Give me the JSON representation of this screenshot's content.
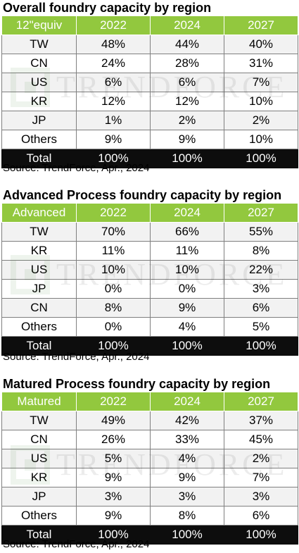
{
  "watermark": "TRENDFORCE",
  "colors": {
    "header_green": "#92c83e",
    "total_black": "#0d0d0d",
    "band_gray": "#f2f2f2"
  },
  "sections": [
    {
      "title": "Overall foundry capacity by region",
      "header": [
        "12\"equiv",
        "2022",
        "2024",
        "2027"
      ],
      "rows": [
        [
          "TW",
          "48%",
          "44%",
          "40%"
        ],
        [
          "CN",
          "24%",
          "28%",
          "31%"
        ],
        [
          "US",
          "6%",
          "6%",
          "7%"
        ],
        [
          "KR",
          "12%",
          "12%",
          "10%"
        ],
        [
          "JP",
          "1%",
          "2%",
          "2%"
        ],
        [
          "Others",
          "9%",
          "9%",
          "10%"
        ]
      ],
      "total": [
        "Total",
        "100%",
        "100%",
        "100%"
      ],
      "source": "Source: TrendForce, Apr., 2024"
    },
    {
      "title": "Advanced Process foundry capacity by region",
      "header": [
        "Advanced",
        "2022",
        "2024",
        "2027"
      ],
      "rows": [
        [
          "TW",
          "70%",
          "66%",
          "55%"
        ],
        [
          "KR",
          "11%",
          "11%",
          "8%"
        ],
        [
          "US",
          "10%",
          "10%",
          "22%"
        ],
        [
          "JP",
          "0%",
          "0%",
          "3%"
        ],
        [
          "CN",
          "8%",
          "9%",
          "6%"
        ],
        [
          "Others",
          "0%",
          "4%",
          "5%"
        ]
      ],
      "total": [
        "Total",
        "100%",
        "100%",
        "100%"
      ],
      "source": "Source: TrendForce, Apr., 2024"
    },
    {
      "title": "Matured Process foundry capacity by region",
      "header": [
        "Matured",
        "2022",
        "2024",
        "2027"
      ],
      "rows": [
        [
          "TW",
          "49%",
          "42%",
          "37%"
        ],
        [
          "CN",
          "26%",
          "33%",
          "45%"
        ],
        [
          "US",
          "5%",
          "4%",
          "2%"
        ],
        [
          "KR",
          "9%",
          "9%",
          "7%"
        ],
        [
          "JP",
          "3%",
          "3%",
          "3%"
        ],
        [
          "Others",
          "9%",
          "8%",
          "6%"
        ]
      ],
      "total": [
        "Total",
        "100%",
        "100%",
        "100%"
      ],
      "source": "Source: TrendForce, Apr., 2024"
    }
  ]
}
